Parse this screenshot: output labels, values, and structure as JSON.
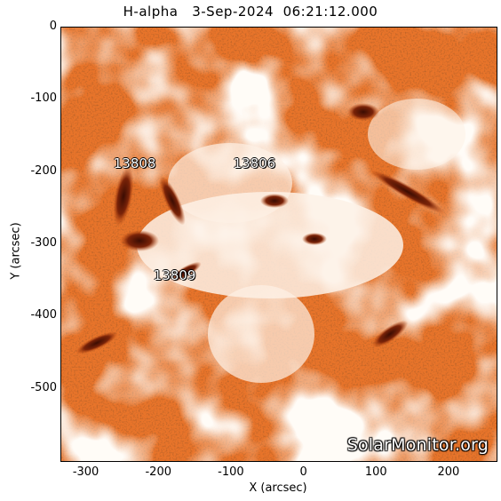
{
  "title": "H-alpha   3-Sep-2024  06:21:12.000",
  "axes": {
    "xlabel": "X (arcsec)",
    "ylabel": "Y (arcsec)",
    "xlim": [
      -335,
      265
    ],
    "ylim": [
      -600,
      0
    ],
    "xticks": [
      "-300",
      "-200",
      "-100",
      "0",
      "100",
      "200"
    ],
    "yticks": [
      "0",
      "-100",
      "-200",
      "-300",
      "-400",
      "-500"
    ]
  },
  "regions": [
    {
      "label": "13808",
      "x": -230,
      "y": -190
    },
    {
      "label": "13806",
      "x": -65,
      "y": -190
    },
    {
      "label": "13809",
      "x": -175,
      "y": -345
    }
  ],
  "watermark": "SolarMonitor.org",
  "colors": {
    "background": "#ffffff",
    "solar_orange": "#e8742a",
    "solar_dark": "#5a1a08",
    "solar_light": "#fbe4cf"
  }
}
